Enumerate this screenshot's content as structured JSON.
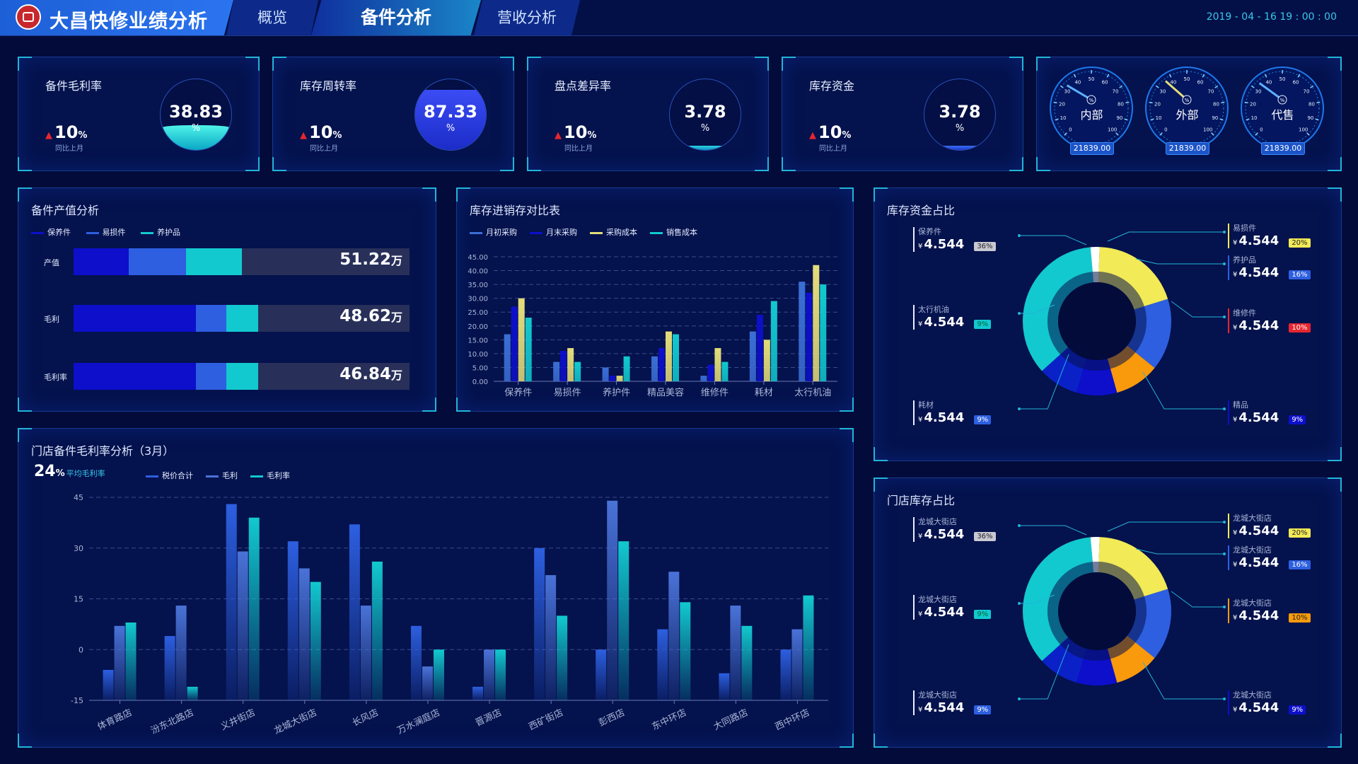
{
  "header": {
    "title": "大昌快修业绩分析",
    "tabs": [
      {
        "label": "概览"
      },
      {
        "label": "备件分析"
      },
      {
        "label": "营收分析"
      }
    ],
    "datetime": "2019 - 04 - 16 19 : 00 : 00"
  },
  "kpis": [
    {
      "label": "备件毛利率",
      "value": "38.83",
      "unit": "%",
      "change": "10",
      "change_unit": "%",
      "sub": "同比上月",
      "fill": 0.35
    },
    {
      "label": "库存周转率",
      "value": "87.33",
      "unit": "%",
      "change": "10",
      "change_unit": "%",
      "sub": "同比上月",
      "fill": 0.85
    },
    {
      "label": "盘点差异率",
      "value": "3.78",
      "unit": "%",
      "change": "10",
      "change_unit": "%",
      "sub": "同比上月",
      "fill": 0.06
    },
    {
      "label": "库存资金",
      "value": "3.78",
      "unit": "%",
      "change": "10",
      "change_unit": "%",
      "sub": "同比上月",
      "fill": 0.06
    }
  ],
  "gauges": [
    {
      "label": "内部",
      "value": "21839.00",
      "unit": "%",
      "needle": 28
    },
    {
      "label": "外部",
      "value": "21839.00",
      "unit": "%",
      "needle": 32
    },
    {
      "label": "代售",
      "value": "21839.00",
      "unit": "%",
      "needle": 30
    }
  ],
  "gauge_ticks": [
    "0",
    "10",
    "20",
    "30",
    "40",
    "50",
    "60",
    "70",
    "80",
    "90",
    "100"
  ],
  "output_panel": {
    "title": "备件产值分析",
    "legend": [
      {
        "name": "保养件",
        "color": "#0d0fcb"
      },
      {
        "name": "易损件",
        "color": "#2d5fe0"
      },
      {
        "name": "养护品",
        "color": "#12c9cf"
      }
    ],
    "rows": [
      {
        "label": "产值",
        "value": "51.22",
        "unit": "万",
        "segments": [
          0.165,
          0.17,
          0.165
        ]
      },
      {
        "label": "毛利",
        "value": "48.62",
        "unit": "万",
        "segments": [
          0.365,
          0.09,
          0.095
        ]
      },
      {
        "label": "毛利率",
        "value": "46.84",
        "unit": "万",
        "segments": [
          0.365,
          0.09,
          0.095
        ]
      }
    ]
  },
  "inventory_panel": {
    "title": "库存进销存对比表"
  },
  "store_gm_panel": {
    "title": "门店备件毛利率分析（3月）",
    "avg_value": "24",
    "avg_unit": "%",
    "avg_label": "平均毛利率"
  },
  "fund_panel": {
    "title": "库存资金占比",
    "items": [
      {
        "label": "保养件",
        "value": "4.544",
        "currency": "¥",
        "badge": "36%",
        "badge_color": "#c8c8d2",
        "badge_text": "#222"
      },
      {
        "label": "太行机油",
        "value": "4.544",
        "currency": "¥",
        "badge": "9%",
        "badge_color": "#12c9cf",
        "badge_text": "#063"
      },
      {
        "label": "耗材",
        "value": "4.544",
        "currency": "¥",
        "badge": "9%",
        "badge_color": "#2d5fe0",
        "badge_text": "#fff"
      },
      {
        "label": "易损件",
        "value": "4.544",
        "currency": "¥",
        "badge": "20%",
        "badge_color": "#f2ea56",
        "badge_text": "#222"
      },
      {
        "label": "养护品",
        "value": "4.544",
        "currency": "¥",
        "badge": "16%",
        "badge_color": "#2d5fe0",
        "badge_text": "#fff"
      },
      {
        "label": "维修件",
        "value": "4.544",
        "currency": "¥",
        "badge": "10%",
        "badge_color": "#e8262f",
        "badge_text": "#fff"
      },
      {
        "label": "精品",
        "value": "4.544",
        "currency": "¥",
        "badge": "9%",
        "badge_color": "#0d0fcb",
        "badge_text": "#fff"
      }
    ]
  },
  "store_stock_panel": {
    "title": "门店库存占比",
    "items": [
      {
        "label": "龙城大街店",
        "value": "4.544",
        "currency": "¥",
        "badge": "36%",
        "badge_color": "#c8c8d2",
        "badge_text": "#222"
      },
      {
        "label": "龙城大街店",
        "value": "4.544",
        "currency": "¥",
        "badge": "9%",
        "badge_color": "#12c9cf",
        "badge_text": "#063"
      },
      {
        "label": "龙城大街店",
        "value": "4.544",
        "currency": "¥",
        "badge": "9%",
        "badge_color": "#2d5fe0",
        "badge_text": "#fff"
      },
      {
        "label": "龙城大街店",
        "value": "4.544",
        "currency": "¥",
        "badge": "20%",
        "badge_color": "#f2ea56",
        "badge_text": "#222"
      },
      {
        "label": "龙城大街店",
        "value": "4.544",
        "currency": "¥",
        "badge": "16%",
        "badge_color": "#2d5fe0",
        "badge_text": "#fff"
      },
      {
        "label": "龙城大街店",
        "value": "4.544",
        "currency": "¥",
        "badge": "10%",
        "badge_color": "#f89a0c",
        "badge_text": "#222"
      },
      {
        "label": "龙城大街店",
        "value": "4.544",
        "currency": "¥",
        "badge": "9%",
        "badge_color": "#0d0fcb",
        "badge_text": "#fff"
      }
    ]
  },
  "donut_slices": [
    {
      "value": 20,
      "color": "#f2ea56"
    },
    {
      "value": 16,
      "color": "#2d5fe0"
    },
    {
      "value": 10,
      "color": "#f89a0c"
    },
    {
      "value": 9,
      "color": "#0d0fcb"
    },
    {
      "value": 9,
      "color": "#0a21c8"
    },
    {
      "value": 36,
      "color": "#12c9cf"
    },
    {
      "value": 2,
      "color": "#ffffff"
    }
  ],
  "chart_data": [
    {
      "type": "bar",
      "title": "库存进销存对比表",
      "categories": [
        "保养件",
        "易损件",
        "养护件",
        "精品美容",
        "维修件",
        "耗材",
        "太行机油"
      ],
      "ylim": [
        0,
        45
      ],
      "yticks": [
        "0.00",
        "5.00",
        "10.00",
        "15.00",
        "20.00",
        "25.00",
        "30.00",
        "35.00",
        "40.00",
        "45.00"
      ],
      "series": [
        {
          "name": "月初采购",
          "color": "#3b6fd6",
          "values": [
            17,
            7,
            5,
            9,
            2,
            18,
            36
          ]
        },
        {
          "name": "月末采购",
          "color": "#0d0fcb",
          "values": [
            27,
            11,
            2,
            12,
            6,
            24,
            32
          ]
        },
        {
          "name": "采购成本",
          "color": "#e3dd7a",
          "values": [
            30,
            12,
            2,
            18,
            12,
            15,
            42
          ]
        },
        {
          "name": "销售成本",
          "color": "#12c9cf",
          "values": [
            23,
            7,
            9,
            17,
            7,
            29,
            35
          ]
        }
      ]
    },
    {
      "type": "bar",
      "title": "门店备件毛利率分析（3月）",
      "categories": [
        "体育路店",
        "汾东北路店",
        "义井街店",
        "龙城大街店",
        "长风店",
        "万水澜庭店",
        "晋源店",
        "西矿街店",
        "彭西店",
        "东中环店",
        "大同路店",
        "西中环店"
      ],
      "ylim": [
        -15,
        45
      ],
      "yticks": [
        "-15",
        "0",
        "15",
        "30",
        "45"
      ],
      "series": [
        {
          "name": "税价合计",
          "color": "#2d5fe0",
          "values": [
            -6,
            4,
            43,
            32,
            37,
            7,
            -11,
            30,
            0,
            6,
            -7,
            0
          ]
        },
        {
          "name": "毛利",
          "color": "#4a73d8",
          "values": [
            7,
            13,
            29,
            24,
            13,
            -5,
            0,
            22,
            44,
            23,
            13,
            6
          ]
        },
        {
          "name": "毛利率",
          "color": "#12c9cf",
          "values": [
            8,
            -11,
            39,
            20,
            26,
            0,
            0,
            10,
            32,
            14,
            7,
            16
          ]
        }
      ]
    }
  ]
}
